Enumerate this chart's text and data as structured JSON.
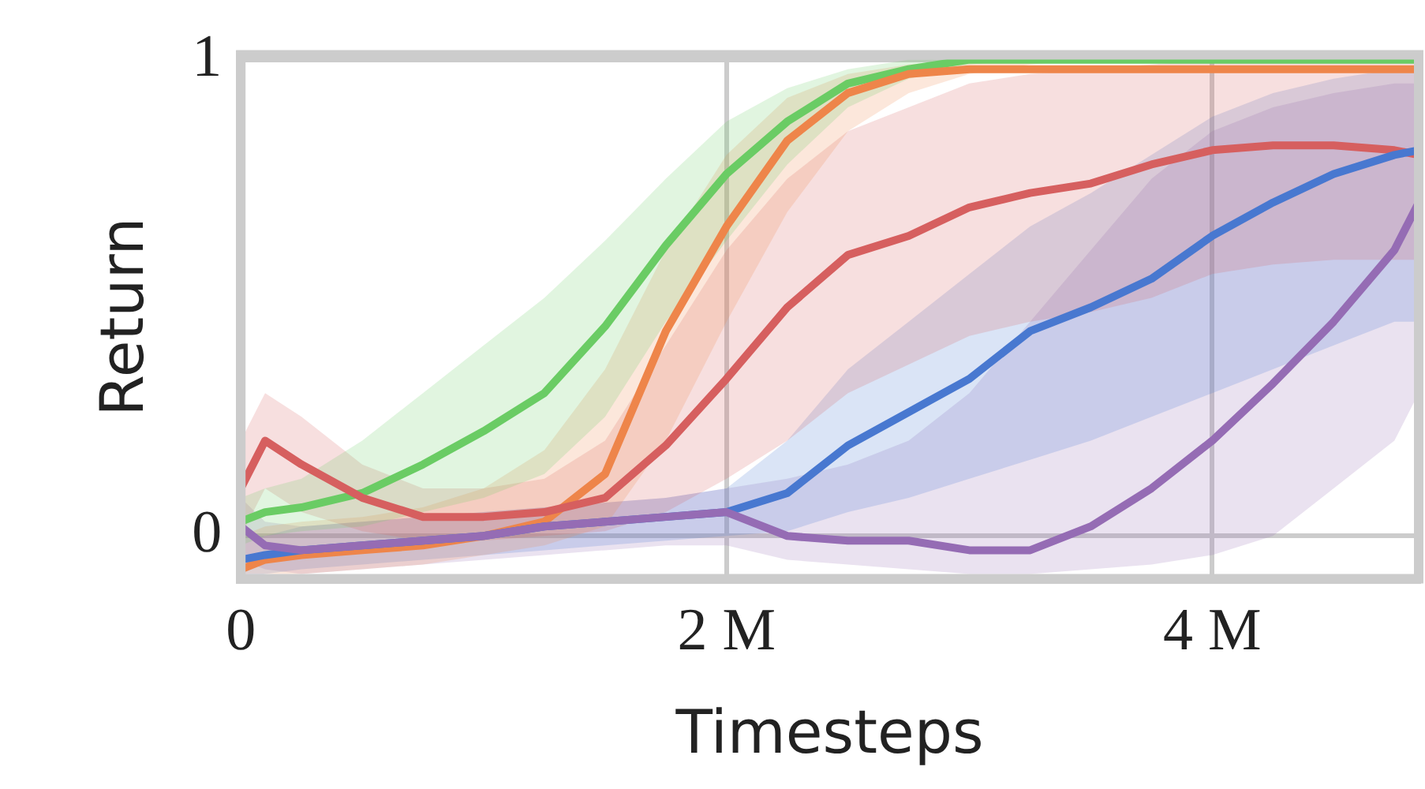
{
  "chart_data": {
    "type": "line",
    "xlabel": "Timesteps",
    "ylabel": "Return",
    "x": [
      0,
      0.1,
      0.25,
      0.5,
      0.75,
      1,
      1.25,
      1.5,
      1.75,
      2,
      2.25,
      2.5,
      2.75,
      3,
      3.25,
      3.5,
      3.75,
      4,
      4.25,
      4.5,
      4.75,
      4.85
    ],
    "xlim": [
      0,
      4.85
    ],
    "xticks": [
      0,
      {
        "value": 2,
        "label": "2 M"
      },
      {
        "value": 4,
        "label": "4 M"
      }
    ],
    "ylim": [
      -0.09,
      1.01
    ],
    "yticks": [
      0,
      1
    ],
    "grid": true,
    "legend": false,
    "marker": "none",
    "line_style": "solid",
    "series": [
      {
        "color": "#6acc64",
        "values": [
          0.03,
          0.05,
          0.06,
          0.09,
          0.15,
          0.22,
          0.3,
          0.44,
          0.61,
          0.76,
          0.87,
          0.95,
          0.98,
          1,
          1,
          1,
          1,
          1,
          1,
          1,
          1,
          1
        ],
        "upper": [
          0.08,
          0.1,
          0.12,
          0.2,
          0.3,
          0.4,
          0.5,
          0.62,
          0.75,
          0.87,
          0.94,
          0.98,
          1,
          1,
          1,
          1,
          1,
          1,
          1,
          1,
          1,
          1
        ],
        "lower": [
          -0.02,
          0,
          0.01,
          0.02,
          0.05,
          0.08,
          0.13,
          0.25,
          0.45,
          0.62,
          0.78,
          0.9,
          0.96,
          0.99,
          1,
          1,
          1,
          1,
          1,
          1,
          1,
          1
        ]
      },
      {
        "color": "#ee854a",
        "values": [
          -0.07,
          -0.05,
          -0.04,
          -0.03,
          -0.02,
          0,
          0.03,
          0.13,
          0.43,
          0.65,
          0.83,
          0.93,
          0.97,
          0.98,
          0.98,
          0.98,
          0.98,
          0.98,
          0.98,
          0.98,
          0.98,
          0.98
        ],
        "upper": [
          0,
          0.02,
          0.03,
          0.04,
          0.06,
          0.1,
          0.18,
          0.35,
          0.6,
          0.8,
          0.92,
          0.97,
          0.99,
          1,
          1,
          1,
          1,
          1,
          1,
          1,
          1,
          1
        ],
        "lower": [
          -0.08,
          -0.08,
          -0.08,
          -0.07,
          -0.06,
          -0.04,
          -0.02,
          0.02,
          0.2,
          0.45,
          0.68,
          0.85,
          0.93,
          0.97,
          0.99,
          1,
          1,
          1,
          1,
          1,
          1,
          1
        ]
      },
      {
        "color": "#d65f5f",
        "values": [
          0.1,
          0.2,
          0.15,
          0.08,
          0.04,
          0.04,
          0.05,
          0.08,
          0.19,
          0.33,
          0.48,
          0.59,
          0.63,
          0.69,
          0.72,
          0.74,
          0.78,
          0.81,
          0.82,
          0.82,
          0.81,
          0.8
        ],
        "upper": [
          0.2,
          0.3,
          0.25,
          0.15,
          0.1,
          0.1,
          0.12,
          0.2,
          0.4,
          0.6,
          0.75,
          0.85,
          0.9,
          0.95,
          0.97,
          0.98,
          0.99,
          1,
          1,
          1,
          1,
          1
        ],
        "lower": [
          0,
          0.1,
          0.05,
          0.01,
          -0.01,
          -0.01,
          0,
          0.01,
          0.05,
          0.12,
          0.2,
          0.3,
          0.36,
          0.42,
          0.45,
          0.47,
          0.5,
          0.55,
          0.57,
          0.58,
          0.58,
          0.58
        ]
      },
      {
        "color": "#4878d0",
        "values": [
          -0.05,
          -0.04,
          -0.03,
          -0.02,
          -0.01,
          0,
          0.02,
          0.03,
          0.04,
          0.05,
          0.09,
          0.19,
          0.26,
          0.33,
          0.43,
          0.48,
          0.54,
          0.63,
          0.7,
          0.76,
          0.8,
          0.81
        ],
        "upper": [
          0,
          0,
          0.02,
          0.03,
          0.04,
          0.05,
          0.06,
          0.07,
          0.08,
          0.1,
          0.2,
          0.35,
          0.45,
          0.55,
          0.65,
          0.72,
          0.8,
          0.88,
          0.93,
          0.96,
          0.98,
          0.98
        ],
        "lower": [
          -0.09,
          -0.08,
          -0.07,
          -0.06,
          -0.05,
          -0.04,
          -0.03,
          -0.02,
          -0.01,
          0,
          0.01,
          0.05,
          0.08,
          0.12,
          0.16,
          0.2,
          0.25,
          0.3,
          0.35,
          0.4,
          0.45,
          0.45
        ]
      },
      {
        "color": "#956cb4",
        "values": [
          0.02,
          -0.02,
          -0.03,
          -0.02,
          -0.01,
          0,
          0.02,
          0.03,
          0.04,
          0.05,
          0,
          -0.01,
          -0.01,
          -0.03,
          -0.03,
          0.02,
          0.1,
          0.2,
          0.32,
          0.45,
          0.6,
          0.7
        ],
        "upper": [
          0.08,
          0.03,
          0.02,
          0.03,
          0.04,
          0.05,
          0.06,
          0.07,
          0.08,
          0.1,
          0.12,
          0.15,
          0.2,
          0.3,
          0.45,
          0.6,
          0.75,
          0.85,
          0.9,
          0.93,
          0.95,
          0.95
        ],
        "lower": [
          -0.05,
          -0.07,
          -0.08,
          -0.07,
          -0.06,
          -0.05,
          -0.04,
          -0.03,
          -0.02,
          -0.02,
          -0.05,
          -0.06,
          -0.07,
          -0.08,
          -0.08,
          -0.07,
          -0.06,
          -0.04,
          0,
          0.1,
          0.2,
          0.3
        ]
      }
    ]
  }
}
